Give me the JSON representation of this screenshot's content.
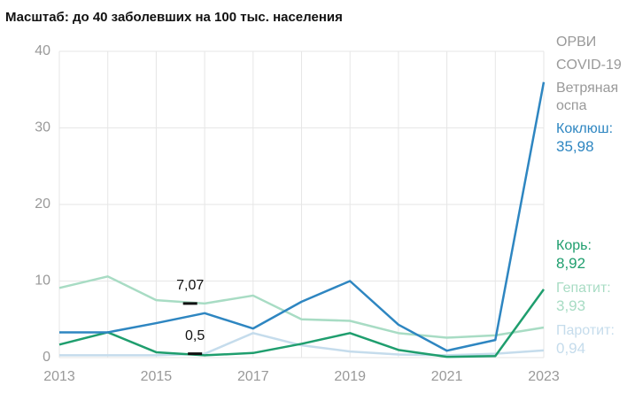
{
  "chart_data": {
    "type": "line",
    "title": "Масштаб: до 40 заболевших на 100 тыс. населения",
    "x": [
      2013,
      2014,
      2015,
      2016,
      2017,
      2018,
      2019,
      2020,
      2021,
      2022,
      2023
    ],
    "xlim": [
      2013,
      2023
    ],
    "xticks": [
      2013,
      2015,
      2017,
      2019,
      2021,
      2023
    ],
    "x_grid_step": 1,
    "ylim": [
      0,
      40
    ],
    "yticks": [
      0,
      10,
      20,
      30,
      40
    ],
    "grid": true,
    "legend_inactive": [
      "ОРВИ",
      "COVID-19",
      "Ветряная оспа"
    ],
    "series": [
      {
        "name": "Коклюш:",
        "color": "#2e86c1",
        "end_label": "35,98",
        "values": [
          3.3,
          3.3,
          4.5,
          5.8,
          3.8,
          7.3,
          10.0,
          4.3,
          0.9,
          2.3,
          35.98
        ]
      },
      {
        "name": "Корь:",
        "color": "#1f9e6e",
        "end_label": "8,92",
        "values": [
          1.7,
          3.3,
          0.7,
          0.3,
          0.6,
          1.8,
          3.2,
          1.0,
          0.1,
          0.2,
          8.92
        ]
      },
      {
        "name": "Гепатит:",
        "color": "#a8dcc4",
        "end_label": "3,93",
        "values": [
          9.1,
          10.6,
          7.5,
          7.07,
          8.1,
          5.0,
          4.8,
          3.2,
          2.6,
          2.9,
          3.93
        ]
      },
      {
        "name": "Паротит:",
        "color": "#c5dcec",
        "end_label": "0,94",
        "values": [
          0.3,
          0.3,
          0.3,
          0.5,
          3.2,
          1.6,
          0.8,
          0.4,
          0.3,
          0.5,
          0.94
        ]
      }
    ],
    "annotations": [
      {
        "text": "7,07",
        "x": 2015.7,
        "y": 7.07
      },
      {
        "text": "0,5",
        "x": 2015.8,
        "y": 0.5
      }
    ]
  }
}
